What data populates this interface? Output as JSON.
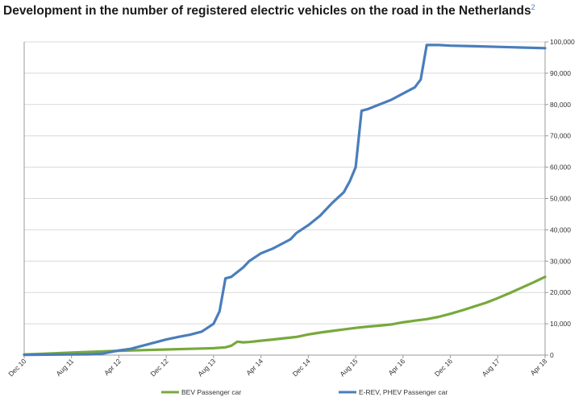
{
  "chart_data": {
    "type": "line",
    "title": "Development in the number of registered electric vehicles on the road in the Netherlands",
    "title_superscript": "2",
    "xlabel": "",
    "ylabel": "",
    "ylim": [
      0,
      100000
    ],
    "yticks": [
      "0",
      "10,000",
      "20,000",
      "30,000",
      "40,000",
      "50,000",
      "60,000",
      "70,000",
      "80,000",
      "90,000",
      "100,000"
    ],
    "xticks": [
      "Dec 10",
      "Aug 11",
      "Apr 12",
      "Dec 12",
      "Aug 13",
      "Apr 14",
      "Dec 14",
      "Aug 15",
      "Apr 16",
      "Dec 16",
      "Aug 17",
      "Apr 18"
    ],
    "xticks_month_index": [
      0,
      8,
      16,
      24,
      32,
      40,
      48,
      56,
      64,
      72,
      80,
      88
    ],
    "x_months_from": "Dec 10",
    "grid": "horizontal",
    "legend_position": "bottom",
    "series": [
      {
        "name": "BEV Passenger car",
        "color": "#77a93c",
        "points": [
          [
            0,
            200
          ],
          [
            4,
            500
          ],
          [
            8,
            800
          ],
          [
            12,
            1100
          ],
          [
            16,
            1400
          ],
          [
            20,
            1600
          ],
          [
            24,
            1800
          ],
          [
            28,
            2000
          ],
          [
            32,
            2200
          ],
          [
            34,
            2500
          ],
          [
            35,
            3000
          ],
          [
            36,
            4300
          ],
          [
            37,
            4100
          ],
          [
            38,
            4200
          ],
          [
            40,
            4600
          ],
          [
            42,
            5000
          ],
          [
            44,
            5400
          ],
          [
            46,
            5800
          ],
          [
            48,
            6600
          ],
          [
            50,
            7200
          ],
          [
            52,
            7700
          ],
          [
            54,
            8200
          ],
          [
            56,
            8700
          ],
          [
            58,
            9100
          ],
          [
            60,
            9400
          ],
          [
            62,
            9800
          ],
          [
            64,
            10500
          ],
          [
            66,
            11000
          ],
          [
            68,
            11500
          ],
          [
            70,
            12200
          ],
          [
            72,
            13200
          ],
          [
            74,
            14300
          ],
          [
            76,
            15500
          ],
          [
            78,
            16700
          ],
          [
            80,
            18200
          ],
          [
            82,
            19800
          ],
          [
            84,
            21500
          ],
          [
            86,
            23200
          ],
          [
            88,
            25000
          ]
        ]
      },
      {
        "name": "E-REV, PHEV Passenger car",
        "color": "#4a7ebb",
        "points": [
          [
            0,
            100
          ],
          [
            4,
            150
          ],
          [
            8,
            200
          ],
          [
            11,
            250
          ],
          [
            13,
            400
          ],
          [
            16,
            1500
          ],
          [
            18,
            2000
          ],
          [
            20,
            3000
          ],
          [
            22,
            4000
          ],
          [
            24,
            5000
          ],
          [
            26,
            5800
          ],
          [
            28,
            6500
          ],
          [
            30,
            7500
          ],
          [
            32,
            10000
          ],
          [
            33,
            14000
          ],
          [
            34,
            24500
          ],
          [
            35,
            25000
          ],
          [
            36,
            26500
          ],
          [
            37,
            28000
          ],
          [
            38,
            30000
          ],
          [
            40,
            32500
          ],
          [
            42,
            34000
          ],
          [
            44,
            36000
          ],
          [
            45,
            37000
          ],
          [
            46,
            39000
          ],
          [
            48,
            41500
          ],
          [
            50,
            44500
          ],
          [
            52,
            48500
          ],
          [
            54,
            52000
          ],
          [
            55,
            55500
          ],
          [
            56,
            60000
          ],
          [
            57,
            78000
          ],
          [
            58,
            78500
          ],
          [
            60,
            80000
          ],
          [
            62,
            81500
          ],
          [
            64,
            83500
          ],
          [
            66,
            85500
          ],
          [
            67,
            88000
          ],
          [
            68,
            99000
          ],
          [
            70,
            99000
          ],
          [
            72,
            98800
          ],
          [
            76,
            98600
          ],
          [
            80,
            98400
          ],
          [
            84,
            98200
          ],
          [
            88,
            98000
          ]
        ]
      }
    ]
  }
}
